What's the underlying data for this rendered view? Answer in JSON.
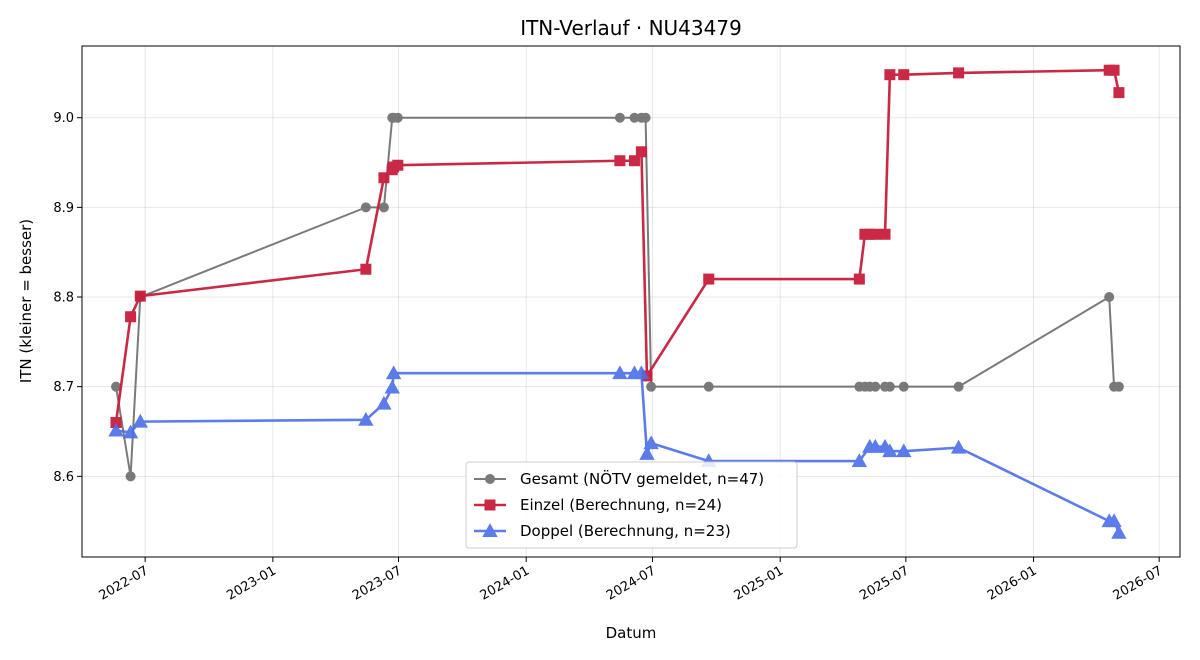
{
  "chart_data": {
    "type": "line",
    "title": "ITN-Verlauf · NU43479",
    "xlabel": "Datum",
    "ylabel": "ITN  (kleiner = besser)",
    "x_axis": "date",
    "xlim": [
      "2022-04-01",
      "2026-07-31"
    ],
    "ylim": [
      8.51,
      9.08
    ],
    "xticks": [
      "2022-07-01",
      "2023-01-01",
      "2023-07-01",
      "2024-01-01",
      "2024-07-01",
      "2025-01-01",
      "2025-07-01",
      "2026-01-01",
      "2026-07-01"
    ],
    "xtick_labels": [
      "2022-07",
      "2023-01",
      "2023-07",
      "2024-01",
      "2024-07",
      "2025-01",
      "2025-07",
      "2026-01",
      "2026-07"
    ],
    "yticks": [
      8.6,
      8.7,
      8.8,
      8.9,
      9.0
    ],
    "ytick_labels": [
      "8.6",
      "8.7",
      "8.8",
      "8.9",
      "9.0"
    ],
    "grid": true,
    "legend_position": "bottom-center",
    "series": [
      {
        "name": "Gesamt (NÖTV gemeldet, n=47)",
        "color": "#555555",
        "marker": "circle",
        "points": [
          {
            "x": "2022-05-20",
            "y": 8.7
          },
          {
            "x": "2022-06-10",
            "y": 8.6
          },
          {
            "x": "2022-06-24",
            "y": 8.8
          },
          {
            "x": "2023-05-15",
            "y": 8.9
          },
          {
            "x": "2023-06-10",
            "y": 8.9
          },
          {
            "x": "2023-06-22",
            "y": 9.0
          },
          {
            "x": "2023-06-24",
            "y": 9.0
          },
          {
            "x": "2023-06-30",
            "y": 9.0
          },
          {
            "x": "2024-05-15",
            "y": 9.0
          },
          {
            "x": "2024-06-05",
            "y": 9.0
          },
          {
            "x": "2024-06-15",
            "y": 9.0
          },
          {
            "x": "2024-06-21",
            "y": 9.0
          },
          {
            "x": "2024-06-29",
            "y": 8.7
          },
          {
            "x": "2024-09-20",
            "y": 8.7
          },
          {
            "x": "2025-04-25",
            "y": 8.7
          },
          {
            "x": "2025-05-03",
            "y": 8.7
          },
          {
            "x": "2025-05-10",
            "y": 8.7
          },
          {
            "x": "2025-05-18",
            "y": 8.7
          },
          {
            "x": "2025-06-01",
            "y": 8.7
          },
          {
            "x": "2025-06-08",
            "y": 8.7
          },
          {
            "x": "2025-06-28",
            "y": 8.7
          },
          {
            "x": "2025-09-15",
            "y": 8.7
          },
          {
            "x": "2026-04-20",
            "y": 8.8
          },
          {
            "x": "2026-04-27",
            "y": 8.7
          },
          {
            "x": "2026-05-04",
            "y": 8.7
          }
        ]
      },
      {
        "name": "Einzel (Berechnung, n=24)",
        "color": "#c81e3c",
        "marker": "square",
        "points": [
          {
            "x": "2022-05-20",
            "y": 8.66
          },
          {
            "x": "2022-06-10",
            "y": 8.778
          },
          {
            "x": "2022-06-24",
            "y": 8.801
          },
          {
            "x": "2023-05-15",
            "y": 8.831
          },
          {
            "x": "2023-06-10",
            "y": 8.933
          },
          {
            "x": "2023-06-22",
            "y": 8.942
          },
          {
            "x": "2023-06-24",
            "y": 8.945
          },
          {
            "x": "2023-06-30",
            "y": 8.947
          },
          {
            "x": "2024-05-15",
            "y": 8.952
          },
          {
            "x": "2024-06-05",
            "y": 8.952
          },
          {
            "x": "2024-06-15",
            "y": 8.962
          },
          {
            "x": "2024-06-23",
            "y": 8.712
          },
          {
            "x": "2024-09-20",
            "y": 8.82
          },
          {
            "x": "2025-04-25",
            "y": 8.82
          },
          {
            "x": "2025-05-03",
            "y": 8.87
          },
          {
            "x": "2025-05-10",
            "y": 8.87
          },
          {
            "x": "2025-05-18",
            "y": 8.87
          },
          {
            "x": "2025-06-01",
            "y": 8.87
          },
          {
            "x": "2025-06-08",
            "y": 9.048
          },
          {
            "x": "2025-06-28",
            "y": 9.048
          },
          {
            "x": "2025-09-15",
            "y": 9.05
          },
          {
            "x": "2026-04-20",
            "y": 9.053
          },
          {
            "x": "2026-04-27",
            "y": 9.053
          },
          {
            "x": "2026-05-04",
            "y": 9.028
          }
        ]
      },
      {
        "name": "Doppel (Berechnung, n=23)",
        "color": "#4a6ee8",
        "marker": "triangle",
        "points": [
          {
            "x": "2022-05-20",
            "y": 8.651
          },
          {
            "x": "2022-06-10",
            "y": 8.649
          },
          {
            "x": "2022-06-24",
            "y": 8.661
          },
          {
            "x": "2023-05-15",
            "y": 8.663
          },
          {
            "x": "2023-06-10",
            "y": 8.681
          },
          {
            "x": "2023-06-22",
            "y": 8.699
          },
          {
            "x": "2023-06-24",
            "y": 8.715
          },
          {
            "x": "2024-05-15",
            "y": 8.715
          },
          {
            "x": "2024-06-05",
            "y": 8.715
          },
          {
            "x": "2024-06-15",
            "y": 8.715
          },
          {
            "x": "2024-06-23",
            "y": 8.625
          },
          {
            "x": "2024-06-29",
            "y": 8.637
          },
          {
            "x": "2024-09-20",
            "y": 8.617
          },
          {
            "x": "2025-04-25",
            "y": 8.617
          },
          {
            "x": "2025-05-10",
            "y": 8.633
          },
          {
            "x": "2025-05-18",
            "y": 8.633
          },
          {
            "x": "2025-06-01",
            "y": 8.633
          },
          {
            "x": "2025-06-08",
            "y": 8.628
          },
          {
            "x": "2025-06-28",
            "y": 8.628
          },
          {
            "x": "2025-09-15",
            "y": 8.632
          },
          {
            "x": "2026-04-20",
            "y": 8.55
          },
          {
            "x": "2026-04-27",
            "y": 8.55
          },
          {
            "x": "2026-05-04",
            "y": 8.537
          }
        ]
      }
    ]
  }
}
